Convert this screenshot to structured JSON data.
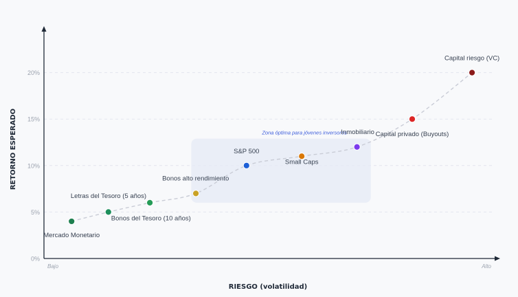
{
  "chart_data": {
    "type": "scatter",
    "title": "",
    "xlabel": "RIESGO (volatilidad)",
    "ylabel": "RETORNO ESPERADO",
    "x_low_label": "Bajo",
    "x_high_label": "Alto",
    "x_scale": "qualitative",
    "xlim": [
      0,
      10
    ],
    "ylim": [
      0,
      25
    ],
    "y_ticks": [
      0,
      5,
      10,
      15,
      20
    ],
    "y_tick_labels": [
      "0%",
      "5%",
      "10%",
      "15%",
      "20%"
    ],
    "grid": "horizontal-dashed",
    "trend_line": "dashed",
    "zone": {
      "label": "Zona óptima para jóvenes inversores",
      "x_range": [
        3.2,
        7.1
      ],
      "y_range": [
        6.0,
        12.9
      ]
    },
    "points": [
      {
        "label": "Mercado Monetario",
        "x": 0.6,
        "y": 4,
        "color": "#1e7f4f"
      },
      {
        "label": "Bonos del Tesoro (10 años)",
        "x": 1.4,
        "y": 5,
        "color": "#1e8f5c"
      },
      {
        "label": "Letras del Tesoro (5 años)",
        "x": 2.3,
        "y": 6,
        "color": "#259b57"
      },
      {
        "label": "Bonos alto rendimiento",
        "x": 3.3,
        "y": 7,
        "color": "#c9a227"
      },
      {
        "label": "S&P 500",
        "x": 4.4,
        "y": 10,
        "color": "#1d5fd6"
      },
      {
        "label": "Small Caps",
        "x": 5.6,
        "y": 11,
        "color": "#d97706"
      },
      {
        "label": "Inmobiliario",
        "x": 6.8,
        "y": 12,
        "color": "#7c3aed"
      },
      {
        "label": "Capital privado (Buyouts)",
        "x": 8.0,
        "y": 15,
        "color": "#dc2626"
      },
      {
        "label": "Capital riesgo (VC)",
        "x": 9.3,
        "y": 20,
        "color": "#8b1a1a"
      }
    ]
  }
}
